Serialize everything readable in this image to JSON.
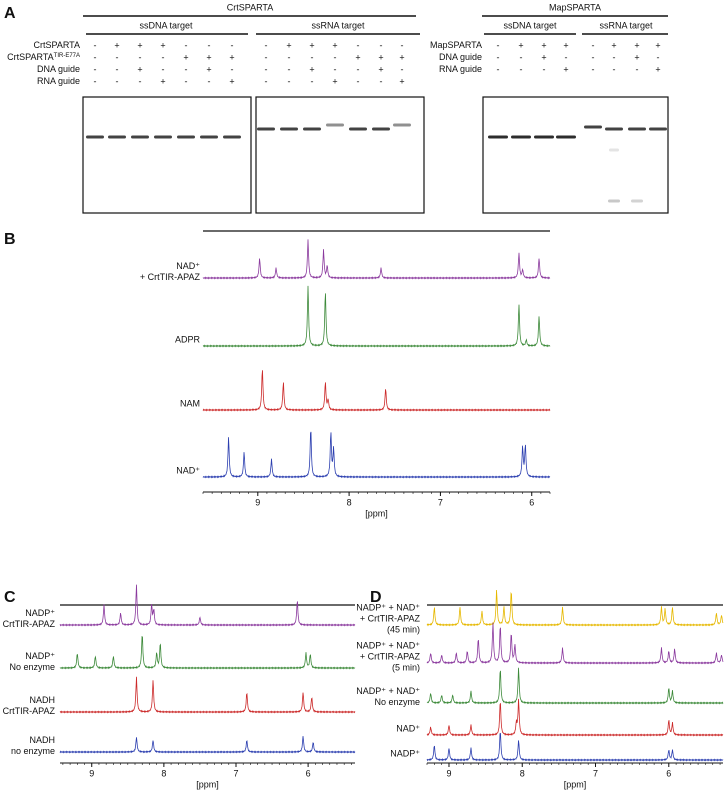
{
  "panel_a": {
    "label": "A",
    "crt": {
      "title": "CrtSPARTA",
      "ssdna": "ssDNA target",
      "ssrna": "ssRNA target",
      "rows": [
        {
          "text": "CrtSPARTA"
        },
        {
          "text": "CrtSPARTA",
          "sup": "TIR-E77A"
        },
        {
          "text": "DNA guide"
        },
        {
          "text": "RNA guide"
        }
      ],
      "ssdna_signs": [
        [
          "-",
          "+",
          "+",
          "+",
          "-",
          "-",
          "-"
        ],
        [
          "-",
          "-",
          "-",
          "-",
          "+",
          "+",
          "+"
        ],
        [
          "-",
          "-",
          "+",
          "-",
          "-",
          "+",
          "-"
        ],
        [
          "-",
          "-",
          "-",
          "+",
          "-",
          "-",
          "+"
        ]
      ],
      "ssrna_signs": [
        [
          "-",
          "+",
          "+",
          "+",
          "-",
          "-",
          "-"
        ],
        [
          "-",
          "-",
          "-",
          "-",
          "+",
          "+",
          "+"
        ],
        [
          "-",
          "-",
          "+",
          "-",
          "-",
          "+",
          "-"
        ],
        [
          "-",
          "-",
          "-",
          "+",
          "-",
          "-",
          "+"
        ]
      ]
    },
    "map": {
      "title": "MapSPARTA",
      "ssdna": "ssDNA target",
      "ssrna": "ssRNA target",
      "rows": [
        {
          "text": "MapSPARTA"
        },
        {
          "text": "DNA guide"
        },
        {
          "text": "RNA guide"
        }
      ],
      "ssdna_signs": [
        [
          "-",
          "+",
          "+",
          "+"
        ],
        [
          "-",
          "-",
          "+",
          "-"
        ],
        [
          "-",
          "-",
          "-",
          "+"
        ]
      ],
      "ssrna_signs": [
        [
          "-",
          "+",
          "+",
          "+"
        ],
        [
          "-",
          "-",
          "+",
          "-"
        ],
        [
          "-",
          "-",
          "-",
          "+"
        ]
      ]
    }
  },
  "panel_b": {
    "label": "B",
    "xlabel": "[ppm]",
    "xlim": [
      9.6,
      5.8
    ],
    "xticks": [
      9,
      8,
      7,
      6
    ],
    "spectra": [
      {
        "lines": [
          "NAD⁺",
          "+ CrtTIR-APAZ"
        ],
        "color": "#8b3a9e"
      },
      {
        "lines": [
          "ADPR"
        ],
        "color": "#3d8a3a"
      },
      {
        "lines": [
          "NAM"
        ],
        "color": "#cc2a2a"
      },
      {
        "lines": [
          "NAD⁺"
        ],
        "color": "#2c3fb0"
      }
    ]
  },
  "panel_c": {
    "label": "C",
    "xlabel": "[ppm]",
    "xlim": [
      9.44,
      5.35
    ],
    "xticks": [
      9,
      8,
      7,
      6
    ],
    "spectra": [
      {
        "lines": [
          "NADP⁺",
          "+ CrtTIR-APAZ"
        ],
        "color": "#8b3a9e"
      },
      {
        "lines": [
          "NADP⁺",
          "No enzyme"
        ],
        "color": "#3d8a3a"
      },
      {
        "lines": [
          "NADH",
          "+ CrtTIR-APAZ"
        ],
        "color": "#cc2a2a"
      },
      {
        "lines": [
          "NADH",
          "no enzyme"
        ],
        "color": "#2c3fb0"
      }
    ]
  },
  "panel_d": {
    "label": "D",
    "xlabel": "[ppm]",
    "xlim": [
      9.3,
      5.26
    ],
    "xticks": [
      9,
      8,
      7,
      6
    ],
    "spectra": [
      {
        "lines": [
          "NADP⁺ + NAD⁺",
          "+ CrtTIR-APAZ",
          "(45 min)"
        ],
        "color": "#e6b800"
      },
      {
        "lines": [
          "NADP⁺ + NAD⁺",
          "+ CrtTIR-APAZ",
          "(5 min)"
        ],
        "color": "#8b3a9e"
      },
      {
        "lines": [
          "NADP⁺ + NAD⁺",
          "No enzyme"
        ],
        "color": "#3d8a3a"
      },
      {
        "lines": [
          "NAD⁺"
        ],
        "color": "#cc2a2a"
      },
      {
        "lines": [
          "NADP⁺"
        ],
        "color": "#2c3fb0"
      }
    ]
  }
}
